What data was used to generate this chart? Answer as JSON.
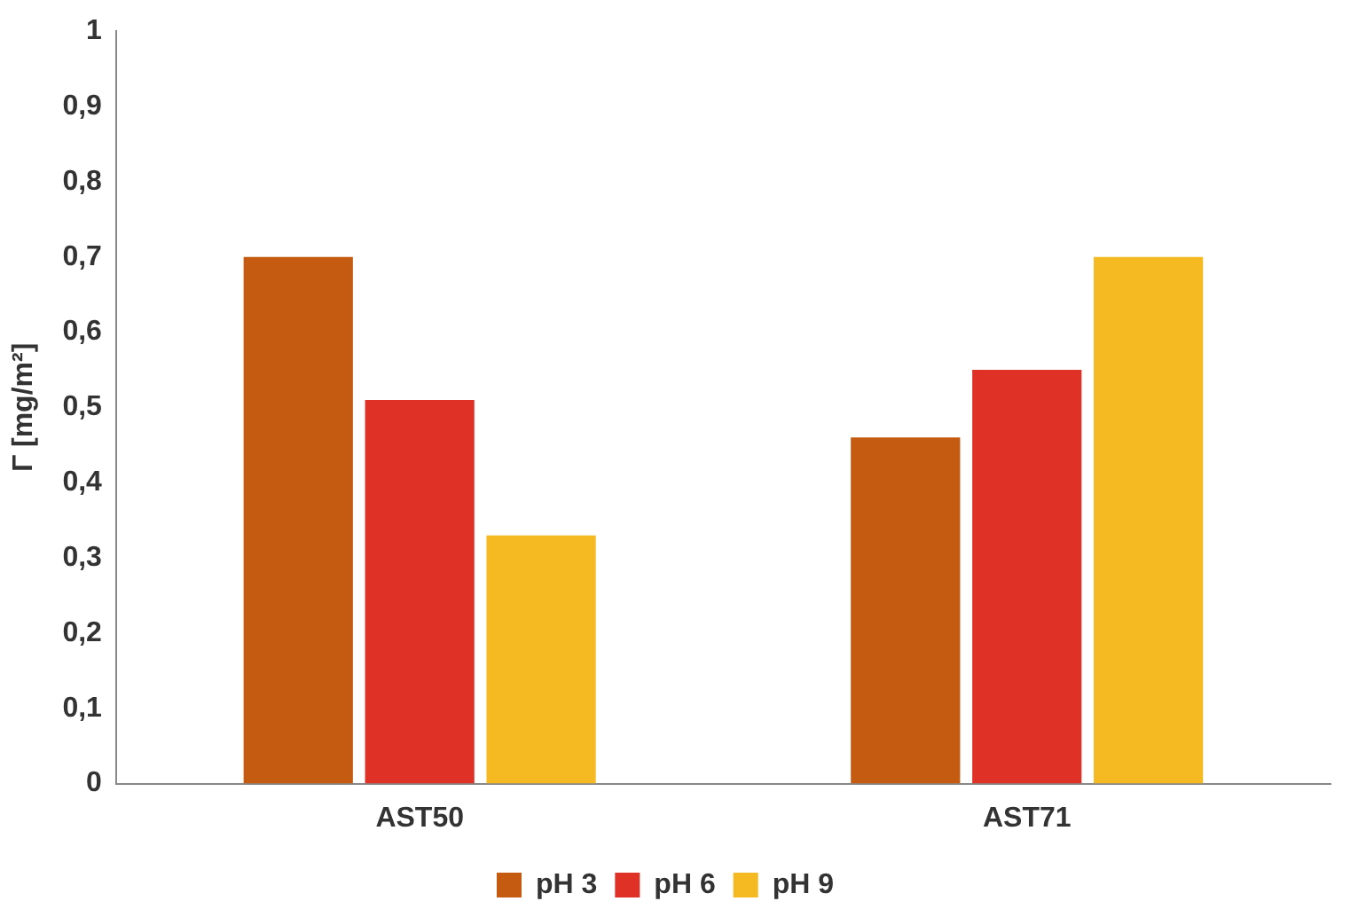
{
  "chart_data": {
    "type": "bar",
    "ylabel": "Γ [mg/m²]",
    "categories": [
      "AST50",
      "AST71"
    ],
    "series": [
      {
        "name": "pH 3",
        "color": "#c55a11",
        "values": [
          0.7,
          0.46
        ]
      },
      {
        "name": "pH 6",
        "color": "#e03127",
        "values": [
          0.51,
          0.55
        ]
      },
      {
        "name": "pH 9",
        "color": "#f5b921",
        "values": [
          0.33,
          0.7
        ]
      }
    ],
    "ylim": [
      0,
      1
    ],
    "yticks": [
      0,
      {
        "value": 0.1,
        "label": "0,1"
      },
      {
        "value": 0.2,
        "label": "0,2"
      },
      {
        "value": 0.3,
        "label": "0,3"
      },
      {
        "value": 0.4,
        "label": "0,4"
      },
      {
        "value": 0.5,
        "label": "0,5"
      },
      {
        "value": 0.6,
        "label": "0,6"
      },
      {
        "value": 0.7,
        "label": "0,7"
      },
      {
        "value": 0.8,
        "label": "0,8"
      },
      {
        "value": 0.9,
        "label": "0,9"
      },
      1
    ],
    "grid": false,
    "legend": "bottom"
  }
}
